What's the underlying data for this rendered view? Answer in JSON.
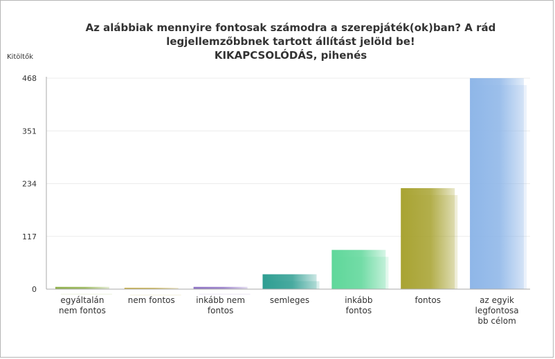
{
  "chart_data": {
    "type": "bar",
    "title_lines": [
      "Az alábbiak mennyire fontosak számodra a szerepjáték(ok)ban? A rád",
      "legjellemzőbbnek tartott állítást jelöld be!",
      "KIKAPCSOLÓDÁS, pihenés"
    ],
    "ylabel": "Kitöltők",
    "ylim": [
      0,
      468
    ],
    "yticks": [
      "0",
      "117",
      "234",
      "351",
      "468"
    ],
    "categories": [
      [
        "egyáltalán",
        "nem fontos"
      ],
      [
        "nem fontos"
      ],
      [
        "inkább nem",
        "fontos"
      ],
      [
        "semleges"
      ],
      [
        "inkább",
        "fontos"
      ],
      [
        "fontos"
      ],
      [
        "az egyik",
        "legfontosa",
        "bb célom"
      ]
    ],
    "values": [
      5,
      3,
      5,
      33,
      87,
      224,
      468
    ],
    "colors": [
      "#8fb04a",
      "#c9b14a",
      "#8e72c4",
      "#2f9e92",
      "#5fd79a",
      "#a8a332",
      "#8eb6e8"
    ],
    "grid": true
  }
}
